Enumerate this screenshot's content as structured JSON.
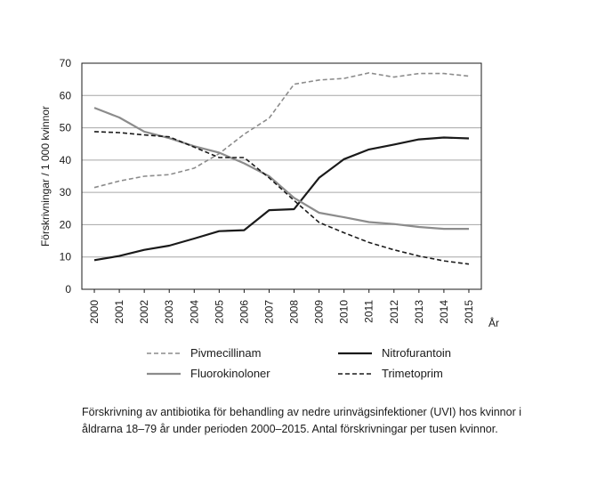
{
  "chart_data": {
    "type": "line",
    "title": "",
    "ylabel": "Förskrivningar / 1 000 kvinnor",
    "xlabel": "År",
    "x": [
      "2000",
      "2001",
      "2002",
      "2003",
      "2004",
      "2005",
      "2006",
      "2007",
      "2008",
      "2009",
      "2010",
      "2011",
      "2012",
      "2013",
      "2014",
      "2015"
    ],
    "ylim": [
      0,
      70
    ],
    "yticks": [
      0,
      10,
      20,
      30,
      40,
      50,
      60,
      70
    ],
    "grid": "horizontal",
    "legend_position": "bottom",
    "series": [
      {
        "name": "Pivmecillinam",
        "style": "dashed",
        "color": "#8c8c8c",
        "values": [
          31.5,
          33.5,
          35,
          35.5,
          37.5,
          42,
          48,
          53,
          63.5,
          64.8,
          65.3,
          67,
          65.7,
          66.8,
          66.8,
          66
        ]
      },
      {
        "name": "Nitrofurantoin",
        "style": "solid",
        "color": "#1a1a1a",
        "values": [
          9,
          10.3,
          12.2,
          13.5,
          15.7,
          18,
          18.3,
          24.5,
          24.8,
          34.5,
          40.3,
          43.3,
          44.8,
          46.4,
          47,
          46.7
        ]
      },
      {
        "name": "Fluorokinoloner",
        "style": "solid",
        "color": "#8c8c8c",
        "values": [
          56.2,
          53.2,
          48.8,
          46.8,
          44.3,
          42.3,
          39,
          35,
          28.3,
          23.7,
          22.3,
          20.8,
          20.2,
          19.3,
          18.7,
          18.7
        ]
      },
      {
        "name": "Trimetoprim",
        "style": "dashed",
        "color": "#1a1a1a",
        "values": [
          48.8,
          48.5,
          47.8,
          47.2,
          44,
          40.8,
          40.8,
          34.5,
          27.5,
          20.7,
          17.5,
          14.5,
          12.2,
          10.3,
          8.8,
          7.8
        ]
      }
    ]
  },
  "caption": "Förskrivning av antibiotika för behandling av nedre urinvägsinfektioner (UVI) hos kvinnor i åldrarna 18–79 år under perioden 2000–2015. Antal förskrivningar per tusen kvinnor."
}
